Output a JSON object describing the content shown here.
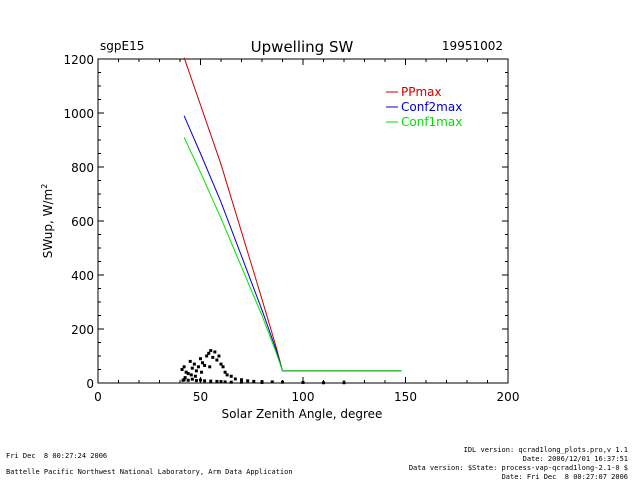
{
  "header": {
    "site": "sgpE15",
    "title": "Upwelling SW",
    "date": "19951002"
  },
  "chart_data": {
    "type": "line",
    "title": "Upwelling SW",
    "xlabel": "Solar Zenith Angle, degree",
    "ylabel": "SWup, W/m",
    "ylabel_superscript": "2",
    "xlim": [
      0,
      200
    ],
    "ylim": [
      0,
      1200
    ],
    "x_ticks": [
      "0",
      "50",
      "100",
      "150",
      "200"
    ],
    "y_ticks": [
      "0",
      "200",
      "400",
      "600",
      "800",
      "1000",
      "1200"
    ],
    "legend_position": "top-right",
    "series": [
      {
        "name": "PPmax",
        "color": "#cc0000",
        "points": [
          [
            42,
            1205
          ],
          [
            50,
            1030
          ],
          [
            60,
            810
          ],
          [
            70,
            560
          ],
          [
            80,
            310
          ],
          [
            87,
            130
          ],
          [
            90,
            45
          ],
          [
            148,
            45
          ]
        ]
      },
      {
        "name": "Conf2max",
        "color": "#0000cc",
        "points": [
          [
            42,
            990
          ],
          [
            50,
            850
          ],
          [
            60,
            670
          ],
          [
            70,
            470
          ],
          [
            80,
            270
          ],
          [
            87,
            120
          ],
          [
            90,
            45
          ],
          [
            148,
            45
          ]
        ]
      },
      {
        "name": "Conf1max",
        "color": "#00e000",
        "points": [
          [
            42,
            910
          ],
          [
            50,
            780
          ],
          [
            60,
            610
          ],
          [
            70,
            430
          ],
          [
            80,
            250
          ],
          [
            87,
            110
          ],
          [
            90,
            45
          ],
          [
            148,
            45
          ]
        ]
      }
    ],
    "observed": {
      "color": "#000000",
      "points": [
        [
          41,
          50
        ],
        [
          41.5,
          10
        ],
        [
          42,
          60
        ],
        [
          42.5,
          20
        ],
        [
          43,
          40
        ],
        [
          44,
          35
        ],
        [
          45,
          80
        ],
        [
          45.5,
          30
        ],
        [
          46,
          55
        ],
        [
          47,
          70
        ],
        [
          47.5,
          25
        ],
        [
          48,
          45
        ],
        [
          49,
          60
        ],
        [
          50,
          90
        ],
        [
          50.5,
          40
        ],
        [
          51,
          75
        ],
        [
          52,
          65
        ],
        [
          53,
          100
        ],
        [
          54,
          110
        ],
        [
          54.5,
          60
        ],
        [
          55,
          120
        ],
        [
          56,
          95
        ],
        [
          57,
          115
        ],
        [
          58,
          85
        ],
        [
          59,
          100
        ],
        [
          60,
          70
        ],
        [
          61,
          60
        ],
        [
          62,
          40
        ],
        [
          63,
          30
        ],
        [
          65,
          25
        ],
        [
          67,
          15
        ],
        [
          70,
          12
        ],
        [
          73,
          8
        ],
        [
          76,
          6
        ],
        [
          80,
          5
        ],
        [
          85,
          4
        ],
        [
          90,
          3
        ],
        [
          100,
          2
        ],
        [
          110,
          1
        ],
        [
          120,
          1
        ],
        [
          42,
          12
        ],
        [
          44,
          10
        ],
        [
          46,
          14
        ],
        [
          48,
          9
        ],
        [
          50,
          11
        ],
        [
          52,
          8
        ],
        [
          55,
          7
        ],
        [
          58,
          6
        ],
        [
          60,
          5
        ],
        [
          62,
          4
        ],
        [
          65,
          3
        ],
        [
          70,
          3
        ],
        [
          80,
          2
        ]
      ]
    }
  },
  "footer": {
    "left_line1": "Fri Dec  8 00:27:24 2006",
    "left_line2": "Battelle Pacific Northwest National Laboratory, Arm Data Application",
    "right_line1": "IDL version: qcrad1long_plots.pro,v 1.1",
    "right_line2": "Date: 2006/12/01 16:37:51",
    "right_line3": "Data version: $State: process-vap-qcrad1long-2.1-0 $",
    "right_line4": "Date: Fri Dec  8 00:27:07 2006"
  }
}
